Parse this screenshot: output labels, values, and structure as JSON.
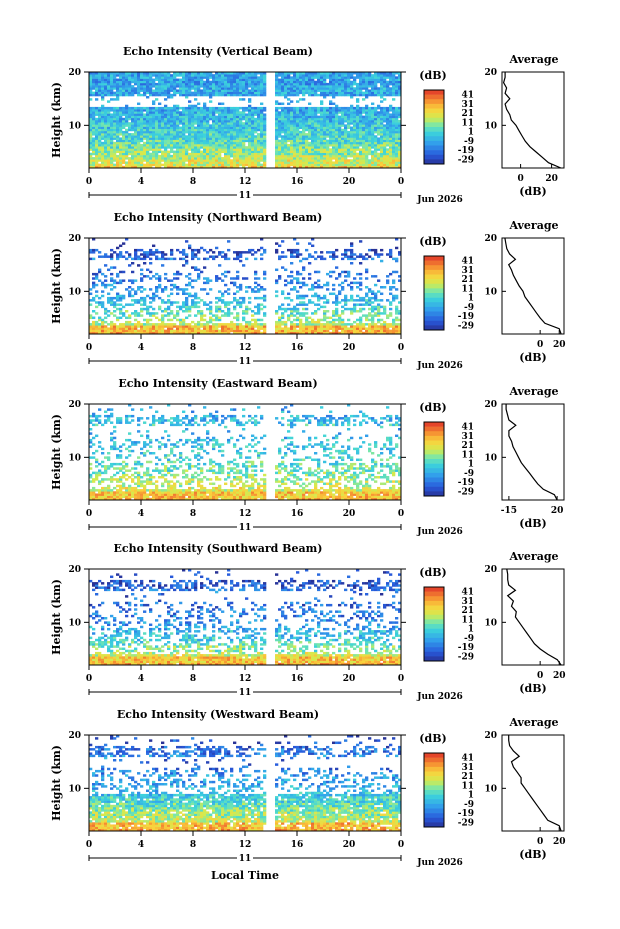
{
  "figure": {
    "xlabel": "Local Time",
    "date_label": "Jun 2026",
    "day_label": "11"
  },
  "chart_data": [
    {
      "type": "heatmap",
      "title": "Echo Intensity (Vertical Beam)",
      "ylabel": "Height (km)",
      "xlabel": "Local Time",
      "x_ticks": [
        "0",
        "4",
        "8",
        "12",
        "16",
        "20",
        "0"
      ],
      "xlim": [
        0,
        24
      ],
      "y_ticks": [
        "20",
        "10"
      ],
      "ylim": [
        2,
        20
      ],
      "day": "11",
      "date": "Jun 2026",
      "colorbar": {
        "label": "(dB)",
        "ticks": [
          "41",
          "31",
          "21",
          "11",
          "1",
          "-9",
          "-19",
          "-29"
        ],
        "range": [
          -34,
          46
        ]
      },
      "average": {
        "title": "Average",
        "xlabel": "(dB)",
        "x_ticks": [
          "0",
          "20"
        ],
        "xlim": [
          -12,
          28
        ],
        "profile": [
          [
            2,
            26
          ],
          [
            3,
            18
          ],
          [
            4,
            14
          ],
          [
            5,
            10
          ],
          [
            6,
            6
          ],
          [
            7,
            3
          ],
          [
            8,
            1
          ],
          [
            9,
            -1
          ],
          [
            10,
            -3
          ],
          [
            11,
            -6
          ],
          [
            12,
            -7
          ],
          [
            13,
            -9
          ],
          [
            14,
            -10
          ],
          [
            15,
            -7
          ],
          [
            16,
            -10
          ],
          [
            17,
            -9
          ],
          [
            18,
            -11
          ],
          [
            19,
            -10
          ],
          [
            20,
            -10
          ]
        ]
      }
    },
    {
      "type": "heatmap",
      "title": "Echo Intensity (Northward Beam)",
      "ylabel": "Height (km)",
      "xlabel": "Local Time",
      "x_ticks": [
        "0",
        "4",
        "8",
        "12",
        "16",
        "20",
        "0"
      ],
      "xlim": [
        0,
        24
      ],
      "y_ticks": [
        "20",
        "10"
      ],
      "ylim": [
        2,
        20
      ],
      "day": "11",
      "date": "Jun 2026",
      "colorbar": {
        "label": "(dB)",
        "ticks": [
          "41",
          "31",
          "21",
          "11",
          "1",
          "-9",
          "-19",
          "-29"
        ],
        "range": [
          -34,
          46
        ]
      },
      "average": {
        "title": "Average",
        "xlabel": "(dB)",
        "x_ticks": [
          "0",
          "20"
        ],
        "xlim": [
          -40,
          25
        ],
        "profile": [
          [
            2,
            22
          ],
          [
            3,
            20
          ],
          [
            4,
            5
          ],
          [
            5,
            0
          ],
          [
            6,
            -4
          ],
          [
            7,
            -8
          ],
          [
            8,
            -12
          ],
          [
            9,
            -16
          ],
          [
            10,
            -18
          ],
          [
            11,
            -22
          ],
          [
            12,
            -25
          ],
          [
            13,
            -28
          ],
          [
            14,
            -30
          ],
          [
            15,
            -33
          ],
          [
            16,
            -26
          ],
          [
            17,
            -32
          ],
          [
            18,
            -35
          ],
          [
            19,
            -36
          ],
          [
            20,
            -37
          ]
        ]
      }
    },
    {
      "type": "heatmap",
      "title": "Echo Intensity (Eastward Beam)",
      "ylabel": "Height (km)",
      "xlabel": "Local Time",
      "x_ticks": [
        "0",
        "4",
        "8",
        "12",
        "16",
        "20",
        "0"
      ],
      "xlim": [
        0,
        24
      ],
      "y_ticks": [
        "20",
        "10"
      ],
      "ylim": [
        2,
        20
      ],
      "day": "11",
      "date": "Jun 2026",
      "colorbar": {
        "label": "(dB)",
        "ticks": [
          "41",
          "31",
          "21",
          "11",
          "1",
          "-9",
          "-19",
          "-29"
        ],
        "range": [
          -34,
          46
        ]
      },
      "average": {
        "title": "Average",
        "xlabel": "(dB)",
        "x_ticks": [
          "-15",
          "20"
        ],
        "xlim": [
          -20,
          25
        ],
        "profile": [
          [
            2,
            20
          ],
          [
            3,
            18
          ],
          [
            4,
            10
          ],
          [
            5,
            6
          ],
          [
            6,
            3
          ],
          [
            7,
            0
          ],
          [
            8,
            -3
          ],
          [
            9,
            -6
          ],
          [
            10,
            -8
          ],
          [
            11,
            -10
          ],
          [
            12,
            -12
          ],
          [
            13,
            -13
          ],
          [
            14,
            -15
          ],
          [
            15,
            -15
          ],
          [
            16,
            -10
          ],
          [
            17,
            -15
          ],
          [
            18,
            -16
          ],
          [
            19,
            -17
          ],
          [
            20,
            -17
          ]
        ]
      }
    },
    {
      "type": "heatmap",
      "title": "Echo Intensity (Southward Beam)",
      "ylabel": "Height (km)",
      "xlabel": "Local Time",
      "x_ticks": [
        "0",
        "4",
        "8",
        "12",
        "16",
        "20",
        "0"
      ],
      "xlim": [
        0,
        24
      ],
      "y_ticks": [
        "20",
        "10"
      ],
      "ylim": [
        2,
        20
      ],
      "day": "11",
      "date": "Jun 2026",
      "colorbar": {
        "label": "(dB)",
        "ticks": [
          "41",
          "31",
          "21",
          "11",
          "1",
          "-9",
          "-19",
          "-29"
        ],
        "range": [
          -34,
          46
        ]
      },
      "average": {
        "title": "Average",
        "xlabel": "(dB)",
        "x_ticks": [
          "0",
          "20"
        ],
        "xlim": [
          -40,
          25
        ],
        "profile": [
          [
            2,
            22
          ],
          [
            3,
            18
          ],
          [
            4,
            8
          ],
          [
            5,
            0
          ],
          [
            6,
            -6
          ],
          [
            7,
            -10
          ],
          [
            8,
            -14
          ],
          [
            9,
            -18
          ],
          [
            10,
            -22
          ],
          [
            11,
            -26
          ],
          [
            12,
            -25
          ],
          [
            13,
            -30
          ],
          [
            14,
            -28
          ],
          [
            15,
            -34
          ],
          [
            16,
            -26
          ],
          [
            17,
            -33
          ],
          [
            18,
            -34
          ],
          [
            19,
            -34
          ],
          [
            20,
            -35
          ]
        ]
      }
    },
    {
      "type": "heatmap",
      "title": "Echo Intensity (Westward Beam)",
      "ylabel": "Height (km)",
      "xlabel": "Local Time",
      "x_ticks": [
        "0",
        "4",
        "8",
        "12",
        "16",
        "20",
        "0"
      ],
      "xlim": [
        0,
        24
      ],
      "y_ticks": [
        "20",
        "10"
      ],
      "ylim": [
        2,
        20
      ],
      "day": "11",
      "date": "Jun 2026",
      "colorbar": {
        "label": "(dB)",
        "ticks": [
          "41",
          "31",
          "21",
          "11",
          "1",
          "-9",
          "-19",
          "-29"
        ],
        "range": [
          -34,
          46
        ]
      },
      "average": {
        "title": "Average",
        "xlabel": "(dB)",
        "x_ticks": [
          "0",
          "20"
        ],
        "xlim": [
          -40,
          25
        ],
        "profile": [
          [
            2,
            22
          ],
          [
            3,
            20
          ],
          [
            4,
            8
          ],
          [
            5,
            4
          ],
          [
            6,
            0
          ],
          [
            7,
            -4
          ],
          [
            8,
            -8
          ],
          [
            9,
            -12
          ],
          [
            10,
            -16
          ],
          [
            11,
            -20
          ],
          [
            12,
            -20
          ],
          [
            13,
            -24
          ],
          [
            14,
            -28
          ],
          [
            15,
            -30
          ],
          [
            16,
            -22
          ],
          [
            17,
            -28
          ],
          [
            18,
            -32
          ],
          [
            19,
            -33
          ],
          [
            20,
            -33
          ]
        ]
      }
    }
  ]
}
